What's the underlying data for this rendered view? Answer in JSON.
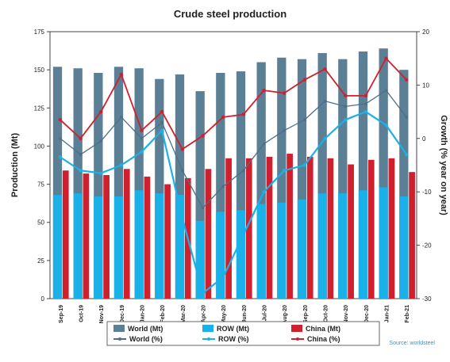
{
  "chart_data": {
    "type": "bar",
    "title": "Crude steel production",
    "categories": [
      "Sep-19",
      "Oct-19",
      "Nov-19",
      "Dec-19",
      "Jan-20",
      "Feb-20",
      "Mar-20",
      "Apr-20",
      "May-20",
      "Jun-20",
      "Jul-20",
      "Aug-20",
      "Sep-20",
      "Oct-20",
      "Nov-20",
      "Dec-20",
      "Jan-21",
      "Feb-21"
    ],
    "ylabel": "Production (Mt)",
    "y2label": "Growth (% year on year)",
    "ylim": [
      0,
      175
    ],
    "y2lim": [
      -30,
      20
    ],
    "yticks": [
      "0",
      "25",
      "50",
      "75",
      "100",
      "125",
      "150",
      "175"
    ],
    "y2ticks": [
      "-30",
      "-20",
      "-10",
      "0",
      "10",
      "20"
    ],
    "bar_series": [
      {
        "name": "World (Mt)",
        "color": "#5b7f95",
        "values": [
          152,
          151,
          148,
          152,
          151,
          144,
          147,
          136,
          148,
          149,
          155,
          158,
          157,
          161,
          157,
          162,
          164,
          150
        ]
      },
      {
        "name": "ROW (Mt)",
        "color": "#1ab0e8",
        "values": [
          68,
          69,
          67,
          67,
          71,
          69,
          68,
          51,
          57,
          58,
          62,
          63,
          65,
          69,
          69,
          71,
          73,
          67
        ]
      },
      {
        "name": "China (Mt)",
        "color": "#d0202e",
        "values": [
          84,
          82,
          81,
          85,
          80,
          75,
          79,
          85,
          92,
          92,
          93,
          95,
          93,
          92,
          88,
          91,
          92,
          83
        ]
      }
    ],
    "line_series": [
      {
        "name": "World (%)",
        "color": "#4f6f86",
        "values": [
          0,
          -3,
          -0.5,
          4,
          0,
          3,
          -6,
          -13,
          -9,
          -6,
          -1,
          1.5,
          3.5,
          7,
          6,
          6.5,
          9,
          4
        ]
      },
      {
        "name": "ROW (%)",
        "color": "#1ab0e8",
        "values": [
          -3.5,
          -6,
          -6.5,
          -5,
          -2.5,
          1.5,
          -15,
          -29,
          -26,
          -18,
          -10,
          -6,
          -5,
          0,
          3.5,
          5,
          2.5,
          -3
        ]
      },
      {
        "name": "China (%)",
        "color": "#d0202e",
        "values": [
          3.5,
          0,
          5,
          12,
          1.5,
          5,
          -2,
          0.5,
          4,
          4.5,
          9,
          8.5,
          11,
          13,
          8,
          8,
          15,
          11
        ]
      }
    ],
    "grid": false,
    "legend_position": "bottom",
    "source": "Source: worldsteel"
  }
}
